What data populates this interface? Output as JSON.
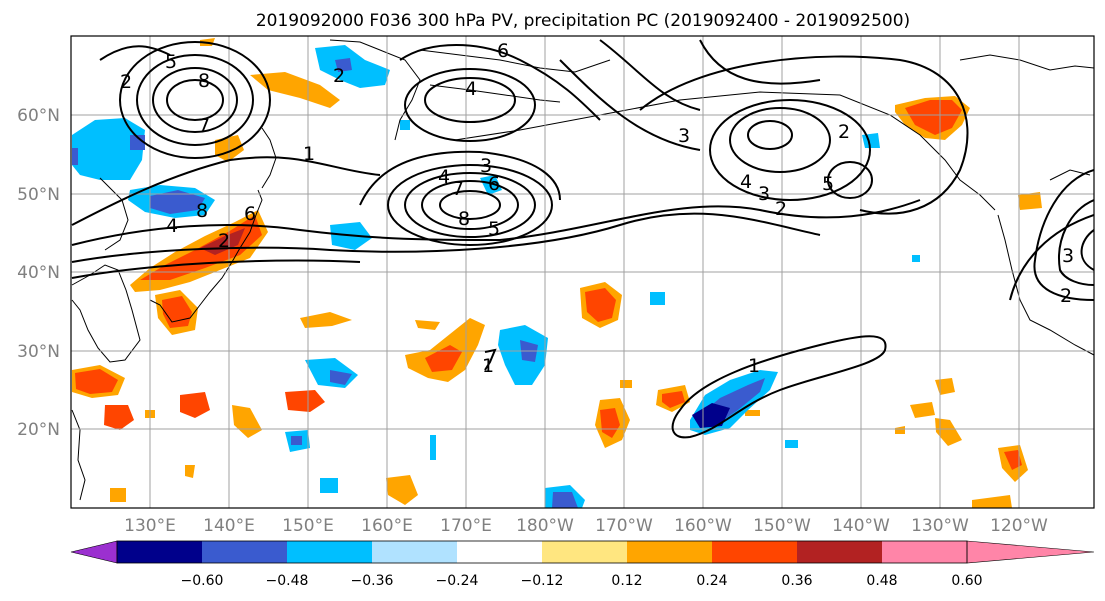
{
  "title": "2019092000 F036 300 hPa PV, precipitation PC (2019092400 - 2019092500)",
  "map": {
    "lat_labels": [
      "60°N",
      "50°N",
      "40°N",
      "30°N",
      "20°N"
    ],
    "lon_labels": [
      "130°E",
      "140°E",
      "150°E",
      "160°E",
      "170°E",
      "180°W",
      "170°W",
      "160°W",
      "150°W",
      "140°W",
      "130°W",
      "120°W"
    ],
    "grid": true
  },
  "colorbar": {
    "ticks": [
      "−0.60",
      "−0.48",
      "−0.36",
      "−0.24",
      "−0.12",
      "0.12",
      "0.24",
      "0.36",
      "0.48",
      "0.60"
    ],
    "colors": [
      "#9b30d0",
      "#00008b",
      "#3a5bcf",
      "#00bfff",
      "#b0e2ff",
      "#ffffff",
      "#ffe680",
      "#ffa500",
      "#ff4500",
      "#b22222",
      "#ff85a8"
    ]
  },
  "contour_labels": [
    "5",
    "8",
    "7",
    "2",
    "2",
    "1",
    "4",
    "8",
    "6",
    "2",
    "4",
    "6",
    "6",
    "4",
    "3",
    "7",
    "8",
    "5",
    "3",
    "2",
    "3",
    "4",
    "5",
    "2",
    "3",
    "2",
    "1",
    "1"
  ]
}
